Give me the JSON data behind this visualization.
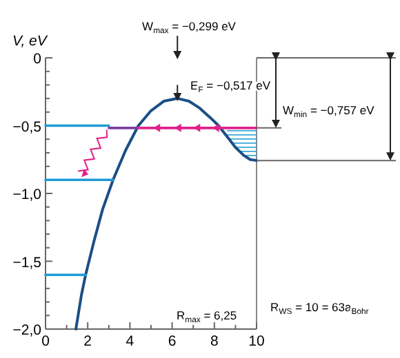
{
  "chart_data": {
    "type": "line",
    "ylabel": "V, eV",
    "xlim": [
      0,
      10
    ],
    "ylim": [
      -2,
      0
    ],
    "xticks": [
      0,
      {
        "value": 1,
        "label": null
      },
      2,
      {
        "value": 3,
        "label": null
      },
      4,
      {
        "value": 5,
        "label": null
      },
      6,
      {
        "value": 7,
        "label": null
      },
      8,
      {
        "value": 9,
        "label": null
      },
      10
    ],
    "yticks": [
      {
        "value": 0,
        "label": "0"
      },
      {
        "value": -0.1,
        "label": null
      },
      {
        "value": -0.2,
        "label": null
      },
      {
        "value": -0.3,
        "label": null
      },
      {
        "value": -0.4,
        "label": null
      },
      {
        "value": -0.5,
        "label": "−0,5"
      },
      {
        "value": -0.6,
        "label": null
      },
      {
        "value": -0.7,
        "label": null
      },
      {
        "value": -0.8,
        "label": null
      },
      {
        "value": -0.9,
        "label": null
      },
      {
        "value": -1,
        "label": "−1,0"
      },
      {
        "value": -1.1,
        "label": null
      },
      {
        "value": -1.2,
        "label": null
      },
      {
        "value": -1.3,
        "label": null
      },
      {
        "value": -1.4,
        "label": null
      },
      {
        "value": -1.5,
        "label": "−1,5"
      },
      {
        "value": -1.6,
        "label": null
      },
      {
        "value": -1.7,
        "label": null
      },
      {
        "value": -1.8,
        "label": null
      },
      {
        "value": -1.9,
        "label": null
      },
      {
        "value": -2,
        "label": "−2,0"
      }
    ],
    "series": [
      {
        "color": "#1b4f86",
        "x": [
          1.44,
          1.7,
          1.9,
          2.3,
          2.7,
          3.2,
          3.8,
          4.4,
          5.0,
          5.6,
          6.25,
          6.8,
          7.3,
          7.8,
          8.2,
          8.6,
          9.0,
          9.4,
          9.7,
          10
        ],
        "values": [
          -2.0,
          -1.75,
          -1.6,
          -1.35,
          -1.12,
          -0.9,
          -0.68,
          -0.5,
          -0.39,
          -0.32,
          -0.299,
          -0.32,
          -0.37,
          -0.44,
          -0.5,
          -0.58,
          -0.66,
          -0.72,
          -0.75,
          -0.757
        ]
      },
      {
        "color": "#1e9bd7",
        "x": [
          0,
          3
        ],
        "values": [
          -0.5,
          -0.5
        ]
      },
      {
        "color": "#7b3fa0",
        "x": [
          3,
          4.4
        ],
        "values": [
          -0.517,
          -0.517
        ]
      },
      {
        "color": "#e0218a",
        "x": [
          4.4,
          10
        ],
        "values": [
          -0.517,
          -0.517
        ]
      },
      {
        "color": "#1e9bd7",
        "x": [
          0,
          3.2
        ],
        "values": [
          -0.9,
          -0.9
        ]
      },
      {
        "color": "#1e9bd7",
        "x": [
          0,
          1.9
        ],
        "values": [
          -1.6,
          -1.6
        ]
      }
    ],
    "ref_lines": [
      {
        "axis": "x",
        "value": 10,
        "color": "#888888"
      }
    ],
    "annotations": [
      "W$_{max}$ = −0,299 eV",
      "E$_{F}$ = −0,517 eV",
      "W$_{min}$ = −0,757 eV",
      "R$_{max}$ = 6,25",
      "R$_{WS}$ = 10 = 63a$_{Bohr}$"
    ],
    "marker": "none",
    "line_style": "solid"
  }
}
